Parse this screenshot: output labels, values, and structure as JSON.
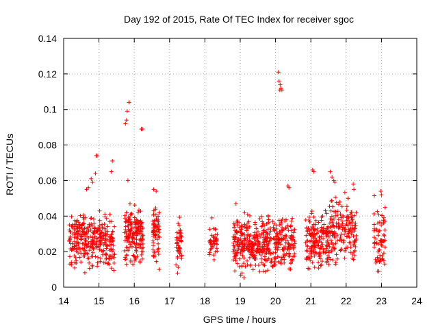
{
  "chart_data": {
    "type": "scatter",
    "title": "Day 192 of 2015, Rate Of TEC Index for receiver sgoc",
    "xlabel": "GPS time / hours",
    "ylabel": "ROTI / TECUs",
    "xlim": [
      14,
      24
    ],
    "ylim": [
      0,
      0.14
    ],
    "xticks": [
      14,
      15,
      16,
      17,
      18,
      19,
      20,
      21,
      22,
      23,
      24
    ],
    "yticks": [
      0,
      0.02,
      0.04,
      0.06,
      0.08,
      0.1,
      0.12,
      0.14
    ],
    "ytick_labels": [
      "0",
      "0.02",
      "0.04",
      "0.06",
      "0.08",
      "0.1",
      "0.12",
      "0.14"
    ],
    "grid": true,
    "marker": "+",
    "color": "#ff0000",
    "series": [
      {
        "name": "ROTI",
        "clusters": [
          {
            "x": [
              14.15,
              15.45
            ],
            "y": [
              0.006,
              0.047
            ],
            "n": 320
          },
          {
            "x": [
              15.72,
              16.25
            ],
            "y": [
              0.006,
              0.052
            ],
            "n": 170
          },
          {
            "x": [
              16.52,
              16.72
            ],
            "y": [
              0.006,
              0.056
            ],
            "n": 70
          },
          {
            "x": [
              17.18,
              17.35
            ],
            "y": [
              0.005,
              0.043
            ],
            "n": 45
          },
          {
            "x": [
              18.12,
              18.35
            ],
            "y": [
              0.007,
              0.04
            ],
            "n": 40
          },
          {
            "x": [
              18.8,
              19.25
            ],
            "y": [
              0.003,
              0.048
            ],
            "n": 130
          },
          {
            "x": [
              19.25,
              19.75
            ],
            "y": [
              0.006,
              0.042
            ],
            "n": 140
          },
          {
            "x": [
              19.75,
              20.55
            ],
            "y": [
              0.003,
              0.046
            ],
            "n": 190
          },
          {
            "x": [
              20.85,
              21.5
            ],
            "y": [
              0.005,
              0.047
            ],
            "n": 170
          },
          {
            "x": [
              21.5,
              22.3
            ],
            "y": [
              0.006,
              0.058
            ],
            "n": 170
          },
          {
            "x": [
              22.78,
              23.12
            ],
            "y": [
              0.004,
              0.054
            ],
            "n": 70
          }
        ],
        "highlights": [
          {
            "x": 14.65,
            "y": 0.055
          },
          {
            "x": 14.7,
            "y": 0.056
          },
          {
            "x": 14.78,
            "y": 0.061
          },
          {
            "x": 14.82,
            "y": 0.059
          },
          {
            "x": 14.9,
            "y": 0.064
          },
          {
            "x": 14.92,
            "y": 0.074
          },
          {
            "x": 14.95,
            "y": 0.074
          },
          {
            "x": 15.35,
            "y": 0.065
          },
          {
            "x": 15.38,
            "y": 0.071
          },
          {
            "x": 15.75,
            "y": 0.092
          },
          {
            "x": 15.78,
            "y": 0.094
          },
          {
            "x": 15.8,
            "y": 0.099
          },
          {
            "x": 15.85,
            "y": 0.104
          },
          {
            "x": 15.82,
            "y": 0.06
          },
          {
            "x": 16.2,
            "y": 0.089
          },
          {
            "x": 16.23,
            "y": 0.089
          },
          {
            "x": 20.08,
            "y": 0.121
          },
          {
            "x": 20.1,
            "y": 0.116
          },
          {
            "x": 20.13,
            "y": 0.114
          },
          {
            "x": 20.15,
            "y": 0.112
          },
          {
            "x": 20.18,
            "y": 0.111
          },
          {
            "x": 20.12,
            "y": 0.111
          },
          {
            "x": 20.35,
            "y": 0.057
          },
          {
            "x": 20.38,
            "y": 0.056
          },
          {
            "x": 21.05,
            "y": 0.066
          },
          {
            "x": 21.08,
            "y": 0.065
          },
          {
            "x": 21.55,
            "y": 0.065
          },
          {
            "x": 21.6,
            "y": 0.062
          },
          {
            "x": 21.65,
            "y": 0.06
          },
          {
            "x": 21.68,
            "y": 0.059
          },
          {
            "x": 22.2,
            "y": 0.058
          },
          {
            "x": 22.22,
            "y": 0.055
          },
          {
            "x": 22.98,
            "y": 0.054
          },
          {
            "x": 23.0,
            "y": 0.052
          },
          {
            "x": 16.55,
            "y": 0.055
          },
          {
            "x": 16.62,
            "y": 0.054
          },
          {
            "x": 18.2,
            "y": 0.039
          },
          {
            "x": 18.88,
            "y": 0.047
          }
        ]
      }
    ]
  }
}
